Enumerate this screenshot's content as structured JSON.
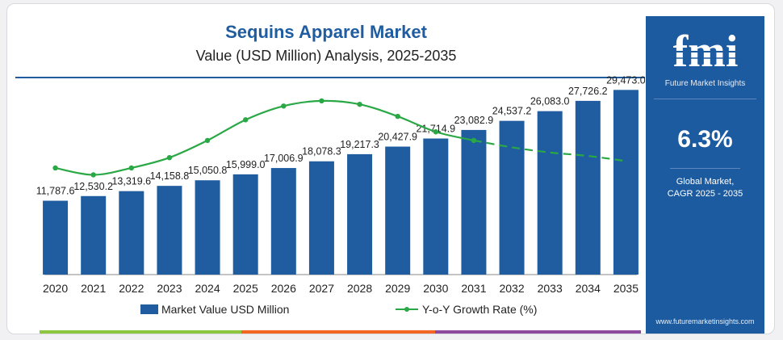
{
  "header": {
    "title": "Sequins Apparel Market",
    "subtitle": "Value (USD Million) Analysis, 2025-2035"
  },
  "legend": {
    "bar_label": "Market Value USD Million",
    "line_label": "Y-o-Y Growth Rate (%)"
  },
  "sidebar": {
    "logo_letters": "fmi",
    "logo_caption": "Future Market Insights",
    "cagr_value": "6.3%",
    "cagr_line1": "Global Market,",
    "cagr_line2": "CAGR 2025 - 2035",
    "website": "www.futuremarketinsights.com"
  },
  "colors": {
    "bar": "#1f5da0",
    "line": "#2aa845",
    "sidebar": "#1d5ba0",
    "title": "#1f5da0",
    "stripe_green": "#8cc63f",
    "stripe_orange": "#f26522",
    "stripe_purple": "#8e4a9e"
  },
  "chart_data": {
    "type": "bar",
    "categories": [
      "2020",
      "2021",
      "2022",
      "2023",
      "2024",
      "2025",
      "2026",
      "2027",
      "2028",
      "2029",
      "2030",
      "2031",
      "2032",
      "2033",
      "2034",
      "2035"
    ],
    "series": [
      {
        "name": "Market Value USD Million",
        "type": "bar",
        "values": [
          11787.6,
          12530.2,
          13319.6,
          14158.8,
          15050.8,
          15999.0,
          17006.9,
          18078.3,
          19217.3,
          20427.9,
          21714.9,
          23082.9,
          24537.2,
          26083.0,
          27726.2,
          29473.0
        ],
        "labels": [
          "11,787.6",
          "12,530.2",
          "13,319.6",
          "14,158.8",
          "15,050.8",
          "15,999.0",
          "17,006.9",
          "18,078.3",
          "19,217.3",
          "20,427.9",
          "21,714.9",
          "23,082.9",
          "24,537.2",
          "26,083.0",
          "27,726.2",
          "29,473.0"
        ]
      },
      {
        "name": "Y-o-Y Growth Rate (%)",
        "type": "line",
        "values": [
          6.1,
          5.9,
          6.1,
          6.4,
          6.9,
          7.5,
          7.9,
          8.05,
          7.95,
          7.6,
          7.15,
          6.9,
          6.7,
          6.55,
          6.45,
          6.3
        ],
        "projected_from_index": 11
      }
    ],
    "xlabel": "",
    "ylabel": "",
    "ylim": [
      0,
      30000
    ],
    "line_ylim": [
      3.0,
      8.4
    ],
    "grid": false,
    "legend_position": "bottom"
  }
}
